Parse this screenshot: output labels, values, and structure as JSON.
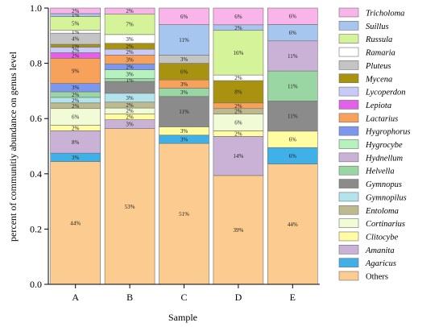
{
  "chart_data": {
    "type": "bar",
    "stacked": true,
    "title": "",
    "xlabel": "Sample",
    "ylabel": "percent of communitiy abundance on genus level",
    "categories": [
      "A",
      "B",
      "C",
      "D",
      "E"
    ],
    "ylim": [
      0,
      1
    ],
    "yticks": [
      "0.0",
      "0.2",
      "0.4",
      "0.6",
      "0.8",
      "1.0"
    ],
    "legend_position": "right",
    "series": [
      {
        "name": "Others",
        "color": "#FCCB8F",
        "values": [
          0.44,
          0.53,
          0.51,
          0.39,
          0.44
        ],
        "labels": [
          "44%",
          "53%",
          "51%",
          "39%",
          "44%"
        ]
      },
      {
        "name": "Agaricus",
        "color": "#3FB1E8",
        "values": [
          0.03,
          0.0,
          0.03,
          0.0,
          0.06
        ],
        "labels": [
          "3%",
          "",
          "3%",
          "",
          "6%"
        ]
      },
      {
        "name": "Amanita",
        "color": "#C9B2D5",
        "values": [
          0.08,
          0.03,
          0.0,
          0.14,
          0.0
        ],
        "labels": [
          "8%",
          "3%",
          "",
          "14%",
          ""
        ]
      },
      {
        "name": "Clitocybe",
        "color": "#FFFCA1",
        "values": [
          0.02,
          0.02,
          0.03,
          0.02,
          0.06
        ],
        "labels": [
          "2%",
          "2%",
          "3%",
          "2%",
          "6%"
        ]
      },
      {
        "name": "Cortinarius",
        "color": "#F1FBD5",
        "values": [
          0.06,
          0.02,
          0.0,
          0.06,
          0.0
        ],
        "labels": [
          "6%",
          "2%",
          "",
          "6%",
          ""
        ]
      },
      {
        "name": "Entoloma",
        "color": "#BDBA8F",
        "values": [
          0.02,
          0.02,
          0.0,
          0.02,
          0.0
        ],
        "labels": [
          "2%",
          "2%",
          "",
          "2%",
          ""
        ]
      },
      {
        "name": "Gymnopilus",
        "color": "#B3E4EC",
        "values": [
          0.02,
          0.03,
          0.0,
          0.0,
          0.0
        ],
        "labels": [
          "2%",
          "3%",
          "",
          "",
          ""
        ]
      },
      {
        "name": "Gymnopus",
        "color": "#8B8B8B",
        "values": [
          0.0,
          0.04,
          0.11,
          0.0,
          0.11
        ],
        "labels": [
          "",
          "",
          "11%",
          "",
          "11%"
        ]
      },
      {
        "name": "Helvella",
        "color": "#99D6A4",
        "values": [
          0.02,
          0.01,
          0.03,
          0.0,
          0.11
        ],
        "labels": [
          "2%",
          "1%",
          "3%",
          "",
          "11%"
        ]
      },
      {
        "name": "Hydnellum",
        "color": "#C9B2D5",
        "values": [
          0.0,
          0.0,
          0.0,
          0.0,
          0.11
        ],
        "labels": [
          "",
          "",
          "",
          "",
          "11%"
        ]
      },
      {
        "name": "Hygrocybe",
        "color": "#B5F2BD",
        "values": [
          0.0,
          0.03,
          0.0,
          0.0,
          0.0
        ],
        "labels": [
          "",
          "3%",
          "",
          "",
          ""
        ]
      },
      {
        "name": "Hygrophorus",
        "color": "#7D97EE",
        "values": [
          0.03,
          0.02,
          0.0,
          0.0,
          0.0
        ],
        "labels": [
          "3%",
          "2%",
          "",
          "",
          ""
        ]
      },
      {
        "name": "Lactarius",
        "color": "#F7A15B",
        "values": [
          0.09,
          0.03,
          0.03,
          0.02,
          0.0
        ],
        "labels": [
          "9%",
          "3%",
          "3%",
          "2%",
          ""
        ]
      },
      {
        "name": "Lepiota",
        "color": "#E560E8",
        "values": [
          0.02,
          0.0,
          0.0,
          0.0,
          0.0
        ],
        "labels": [
          "2%",
          "",
          "",
          "",
          ""
        ]
      },
      {
        "name": "Lycoperdon",
        "color": "#C8CBF7",
        "values": [
          0.02,
          0.02,
          0.0,
          0.0,
          0.0
        ],
        "labels": [
          "2%",
          "2%",
          "",
          "",
          ""
        ]
      },
      {
        "name": "Mycena",
        "color": "#A8920F",
        "values": [
          0.01,
          0.02,
          0.06,
          0.08,
          0.0
        ],
        "labels": [
          "1%",
          "2%",
          "6%",
          "8%",
          ""
        ]
      },
      {
        "name": "Pluteus",
        "color": "#C4C4C4",
        "values": [
          0.04,
          0.0,
          0.03,
          0.0,
          0.0
        ],
        "labels": [
          "4%",
          "",
          "3%",
          "",
          ""
        ]
      },
      {
        "name": "Ramaria",
        "color": "#FFFFFF",
        "values": [
          0.01,
          0.03,
          0.0,
          0.02,
          0.0
        ],
        "labels": [
          "1%",
          "3%",
          "",
          "2%",
          ""
        ]
      },
      {
        "name": "Russula",
        "color": "#D5F398",
        "values": [
          0.05,
          0.07,
          0.0,
          0.16,
          0.0
        ],
        "labels": [
          "5%",
          "7%",
          "",
          "16%",
          ""
        ]
      },
      {
        "name": "Suillus",
        "color": "#A6C5EF",
        "values": [
          0.01,
          0.0,
          0.11,
          0.02,
          0.06
        ],
        "labels": [
          "1%",
          "",
          "11%",
          "2%",
          "6%"
        ]
      },
      {
        "name": "Tricholoma",
        "color": "#F9B4EA",
        "values": [
          0.02,
          0.02,
          0.06,
          0.06,
          0.06
        ],
        "labels": [
          "2%",
          "2%",
          "6%",
          "6%",
          "6%"
        ]
      }
    ]
  }
}
